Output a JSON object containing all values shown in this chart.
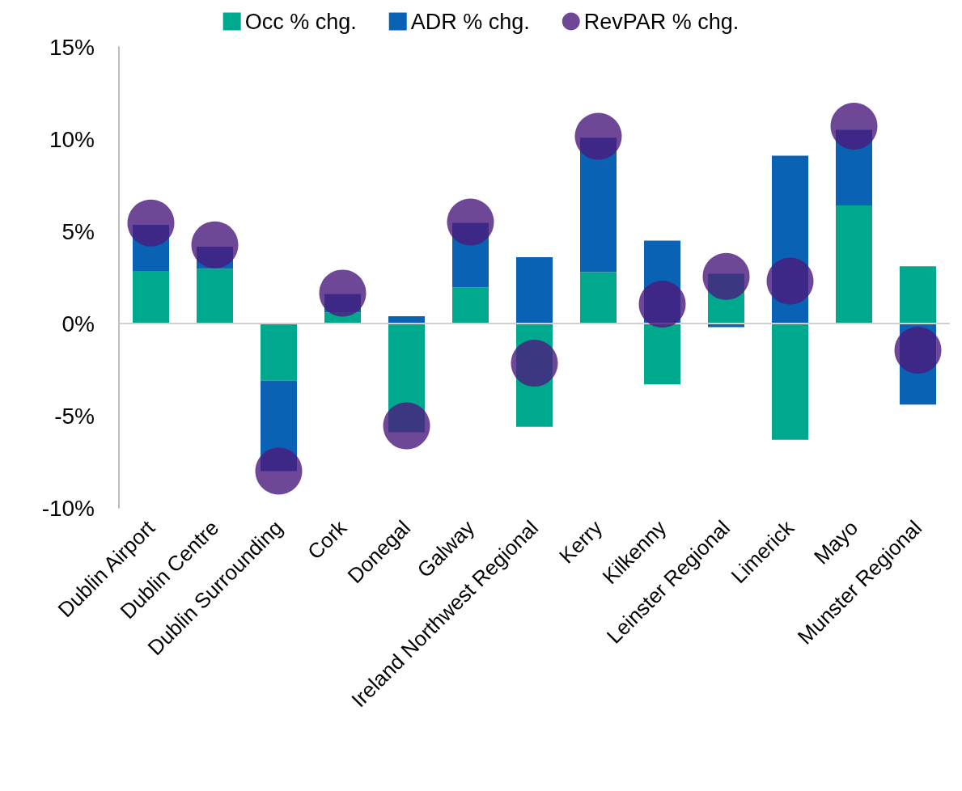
{
  "chart_data": {
    "type": "bar",
    "stacked": true,
    "legend": "top",
    "grid": false,
    "categories": [
      "Dublin Airport",
      "Dublin Centre",
      "Dublin Surrounding",
      "Cork",
      "Donegal",
      "Galway",
      "Ireland Northwest Regional",
      "Kerry",
      "Kilkenny",
      "Leinster Regional",
      "Limerick",
      "Mayo",
      "Munster Regional"
    ],
    "series": [
      {
        "name": "Occ % chg.",
        "color": "#00a98e",
        "values": [
          2.85,
          2.97,
          -3.1,
          0.6,
          -5.9,
          1.96,
          -5.6,
          2.78,
          -3.3,
          2.7,
          -6.3,
          6.4,
          3.1
        ]
      },
      {
        "name": "ADR % chg.",
        "color": "#0a62b4",
        "values": [
          2.5,
          1.2,
          -4.9,
          1.0,
          0.4,
          3.5,
          3.6,
          7.3,
          4.5,
          -0.2,
          9.1,
          4.1,
          -4.4
        ]
      },
      {
        "name": "RevPAR % chg.",
        "type": "scatter",
        "marker": "circle",
        "color": "#4a1a7d",
        "values": [
          5.45,
          4.27,
          -8.0,
          1.65,
          -5.55,
          5.5,
          -2.15,
          10.15,
          1.05,
          2.55,
          2.3,
          10.7,
          -1.45
        ]
      }
    ],
    "ref_lines": [
      {
        "axis": "y",
        "value": 0,
        "color": "#d0d0d0",
        "line_style": "solid"
      }
    ],
    "ylim": [
      -10,
      15
    ],
    "yticks": [
      {
        "value": -10,
        "label": "-10%"
      },
      {
        "value": -5,
        "label": "-5%"
      },
      {
        "value": 0,
        "label": "0%"
      },
      {
        "value": 5,
        "label": "5%"
      },
      {
        "value": 10,
        "label": "10%"
      },
      {
        "value": 15,
        "label": "15%"
      }
    ]
  }
}
